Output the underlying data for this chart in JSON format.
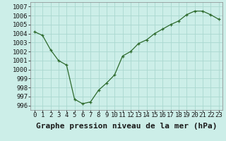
{
  "x": [
    0,
    1,
    2,
    3,
    4,
    5,
    6,
    7,
    8,
    9,
    10,
    11,
    12,
    13,
    14,
    15,
    16,
    17,
    18,
    19,
    20,
    21,
    22,
    23
  ],
  "y": [
    1004.2,
    1003.8,
    1002.2,
    1001.0,
    1000.5,
    996.7,
    996.2,
    996.4,
    997.7,
    998.5,
    999.4,
    1001.5,
    1002.0,
    1002.9,
    1003.3,
    1004.0,
    1004.5,
    1005.0,
    1005.4,
    1006.1,
    1006.5,
    1006.5,
    1006.1,
    1005.6
  ],
  "line_color": "#2d6a2d",
  "marker": "+",
  "background_color": "#cceee8",
  "grid_color": "#aad8d0",
  "ylabel_ticks": [
    996,
    997,
    998,
    999,
    1000,
    1001,
    1002,
    1003,
    1004,
    1005,
    1006,
    1007
  ],
  "xlabel_ticks": [
    0,
    1,
    2,
    3,
    4,
    5,
    6,
    7,
    8,
    9,
    10,
    11,
    12,
    13,
    14,
    15,
    16,
    17,
    18,
    19,
    20,
    21,
    22,
    23
  ],
  "ylim": [
    995.5,
    1007.5
  ],
  "xlim": [
    -0.5,
    23.5
  ],
  "xlabel": "Graphe pression niveau de la mer (hPa)",
  "tick_fontsize": 6.5,
  "label_fontsize": 8.0
}
